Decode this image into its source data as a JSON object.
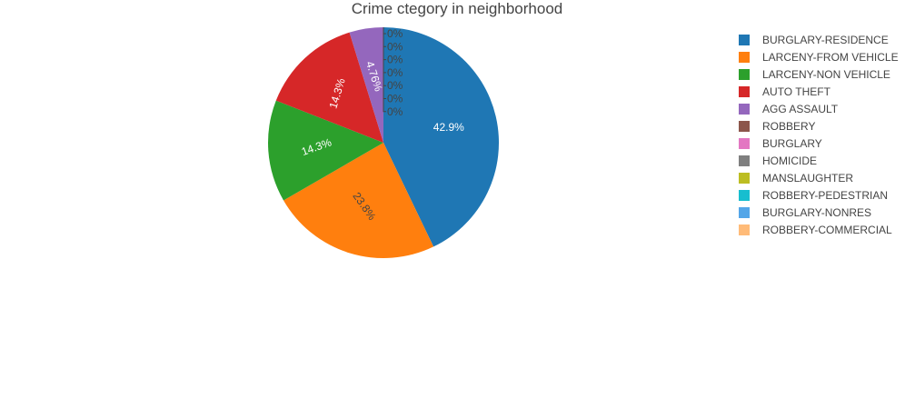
{
  "chart_data": {
    "type": "pie",
    "title": "Crime ctegory in neighborhood",
    "categories": [
      "BURGLARY-RESIDENCE",
      "LARCENY-FROM VEHICLE",
      "LARCENY-NON VEHICLE",
      "AUTO THEFT",
      "AGG ASSAULT",
      "ROBBERY",
      "BURGLARY",
      "HOMICIDE",
      "MANSLAUGHTER",
      "ROBBERY-PEDESTRIAN",
      "BURGLARY-NONRES",
      "ROBBERY-COMMERCIAL"
    ],
    "values": [
      9,
      5,
      3,
      3,
      1,
      0,
      0,
      0,
      0,
      0,
      0,
      0
    ],
    "labels": [
      "42.9%",
      "23.8%",
      "14.3%",
      "14.3%",
      "4.76%",
      "0%",
      "0%",
      "0%",
      "0%",
      "0%",
      "0%",
      "0%"
    ],
    "colors": [
      "#1f77b4",
      "#ff7f0e",
      "#2ca02c",
      "#d62728",
      "#9467bd",
      "#8c564b",
      "#e377c2",
      "#7f7f7f",
      "#bcbd22",
      "#17becf",
      "#54a6e8",
      "#ffbb78"
    ],
    "legend_position": "right",
    "direction": "clockwise"
  }
}
